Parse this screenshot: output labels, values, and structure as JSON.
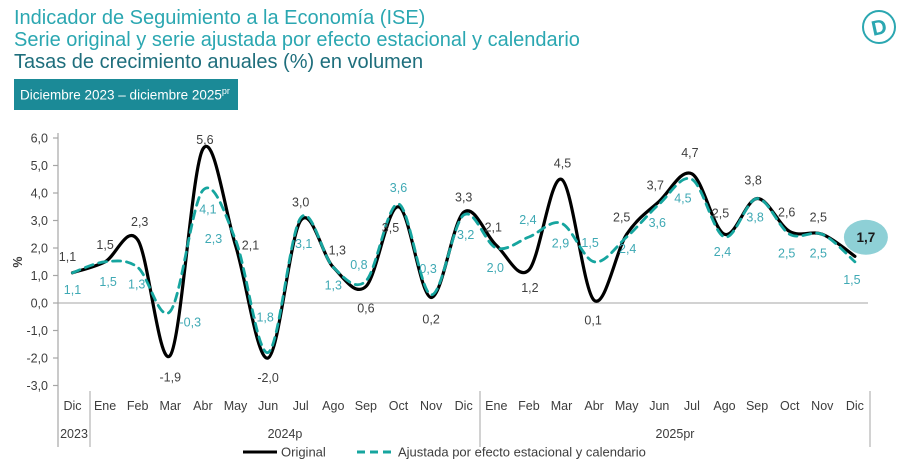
{
  "header": {
    "title_line1": "Indicador de Seguimiento a la Economía (ISE)",
    "title_line2": "Serie original y serie ajustada por efecto estacional y calendario",
    "title_line3": "Tasas de crecimiento anuales (%) en volumen",
    "badge_text": "Diciembre 2023 – diciembre 2025",
    "badge_sup": "pr",
    "logo_letter": "D"
  },
  "colors": {
    "title_teal": "#2ba7b1",
    "subtitle_dark_teal": "#1e6e7c",
    "badge_bg": "#1b8a97",
    "line_original": "#000000",
    "line_ajustada": "#16a59f",
    "label_original": "#3f3f3f",
    "label_ajustada": "#3fa9b4",
    "axis_gray": "#a6a6a6",
    "text_dark": "#3d3d3d",
    "highlight_bubble": "#8ed0d6"
  },
  "chart_data": {
    "type": "line",
    "ylabel": "%",
    "ylim": [
      -3.0,
      6.0
    ],
    "ytick_step": 1.0,
    "yticks": [
      "6,0",
      "5,0",
      "4,0",
      "3,0",
      "2,0",
      "1,0",
      "0,0",
      "-1,0",
      "-2,0",
      "-3,0"
    ],
    "grid": "zero-line-only",
    "categories": [
      "Dic",
      "Ene",
      "Feb",
      "Mar",
      "Abr",
      "May",
      "Jun",
      "Jul",
      "Ago",
      "Sep",
      "Oct",
      "Nov",
      "Dic",
      "Ene",
      "Feb",
      "Mar",
      "Abr",
      "May",
      "Jun",
      "Jul",
      "Ago",
      "Sep",
      "Oct",
      "Nov",
      "Dic"
    ],
    "year_groups": [
      {
        "label": "2023",
        "months": 1
      },
      {
        "label": "2024p",
        "months": 12
      },
      {
        "label": "2025pr",
        "months": 12
      }
    ],
    "series": [
      {
        "name": "Original",
        "style": "solid",
        "values": [
          1.1,
          1.5,
          2.3,
          -1.9,
          5.6,
          2.1,
          -2.0,
          3.0,
          1.3,
          0.6,
          3.5,
          0.2,
          3.3,
          2.1,
          1.2,
          4.5,
          0.1,
          2.5,
          3.7,
          4.7,
          2.5,
          3.8,
          2.6,
          2.5,
          1.7
        ],
        "labels": [
          "1,1",
          "1,5",
          "2,3",
          "-1,9",
          "5,6",
          "2,1",
          "-2,0",
          "3,0",
          "1,3",
          "0,6",
          "3,5",
          "0,2",
          "3,3",
          "2,1",
          "1,2",
          "4,5",
          "0,1",
          "2,5",
          "3,7",
          "4,7",
          "2,5",
          "3,8",
          "2,6",
          "2,5",
          "1,7"
        ]
      },
      {
        "name": "Ajustada por efecto estacional y calendario",
        "style": "dashed",
        "values": [
          1.1,
          1.5,
          1.3,
          -0.3,
          4.1,
          2.3,
          -1.8,
          3.1,
          1.3,
          0.8,
          3.6,
          0.3,
          3.2,
          2.0,
          2.4,
          2.9,
          1.5,
          2.4,
          3.6,
          4.5,
          2.4,
          3.8,
          2.5,
          2.5,
          1.5
        ],
        "labels": [
          "1,1",
          "1,5",
          "1,3",
          "-0,3",
          "4,1",
          "2,3",
          "-1,8",
          "3,1",
          "1,3",
          "0,8",
          "3,6",
          "0,3",
          "3,2",
          "2,0",
          "2,4",
          "2,9",
          "1,5",
          "2,4",
          "3,6",
          "4,5",
          "2,4",
          "3,8",
          "2,5",
          "2,5",
          "1,5"
        ]
      }
    ],
    "highlight": {
      "series": "Original",
      "category_index": 24,
      "value": 1.7,
      "label": "1,7"
    },
    "legend_position": "bottom",
    "legend": [
      "Original",
      "Ajustada por efecto estacional y calendario"
    ]
  }
}
